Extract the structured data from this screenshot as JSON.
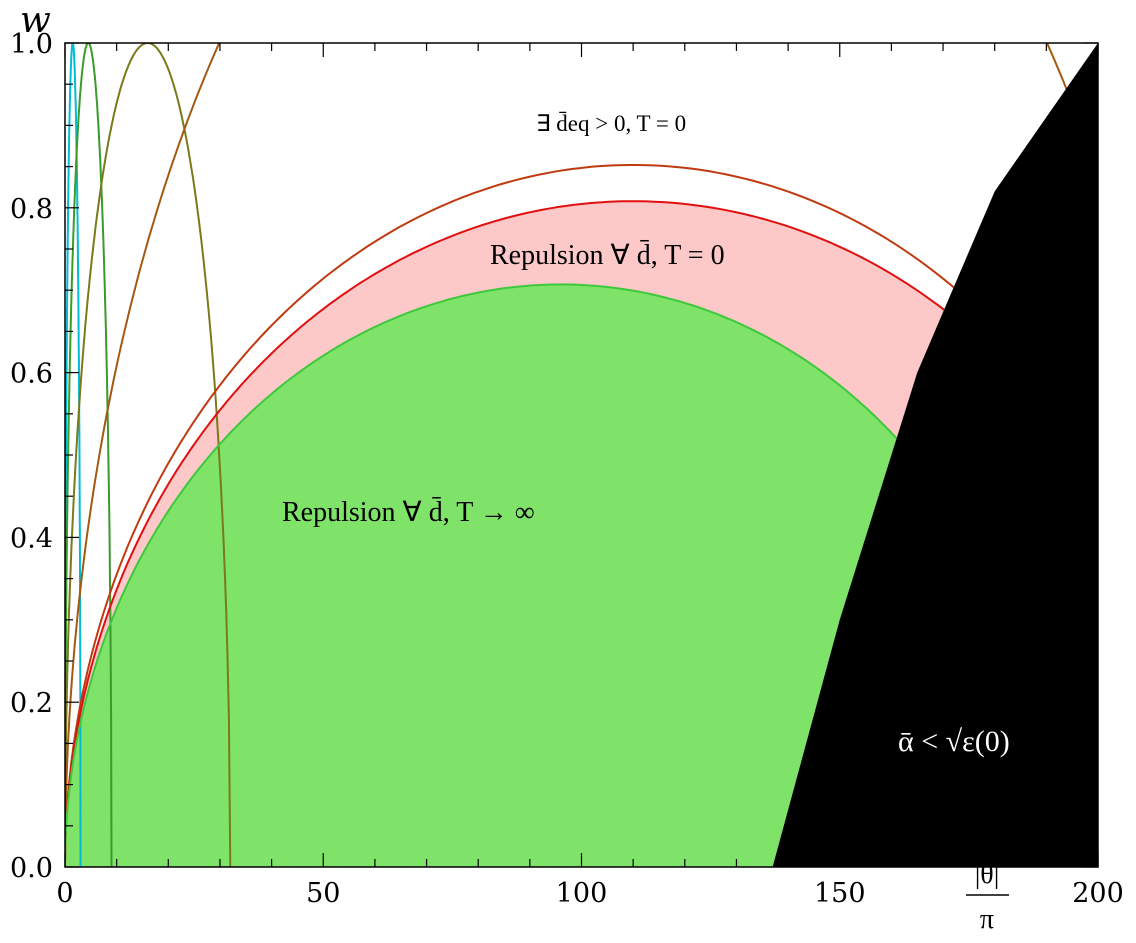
{
  "chart_data": {
    "type": "line",
    "title": "",
    "xlabel": "|θ| / π",
    "xlabel_numerator": "|θ|",
    "xlabel_denominator": "π",
    "ylabel": "w",
    "xlim": [
      0,
      200
    ],
    "ylim": [
      0.0,
      1.0
    ],
    "x_ticks": [
      "0",
      "50",
      "100",
      "150",
      "200"
    ],
    "y_ticks": [
      "0.0",
      "0.2",
      "0.4",
      "0.6",
      "0.8",
      "1.0"
    ],
    "grid": false,
    "regions": [
      {
        "label": "Repulsion ∀ d̄,  T → ∞",
        "color": "#7ee368",
        "boundary_peak": {
          "x": 96,
          "w": 0.707
        },
        "x_range": [
          0,
          155
        ]
      },
      {
        "label": "Repulsion ∀ d̄,  T = 0",
        "color": "#fcc8c8",
        "boundary_peak": {
          "x": 110,
          "w": 0.808
        },
        "x_range": [
          0,
          165
        ]
      },
      {
        "label": "∃ d̄eq > 0,  T = 0",
        "color": "#ffffff"
      },
      {
        "label": "ᾱ < √ε(0)",
        "color": "#000000",
        "boundary": [
          [
            137,
            0.0
          ],
          [
            150,
            0.3
          ],
          [
            165,
            0.6
          ],
          [
            180,
            0.82
          ],
          [
            200,
            1.0
          ]
        ]
      }
    ],
    "series": [
      {
        "color": "#00bcd4",
        "peak_x": 1.5,
        "peak_w": 1.0,
        "x_end": 1.5
      },
      {
        "color": "#3a9a2a",
        "peak_x": 4.5,
        "peak_w": 1.0,
        "x_end": 4.5
      },
      {
        "color": "#7a7a1a",
        "peak_x": 16,
        "peak_w": 1.0,
        "x_end": 16
      },
      {
        "color": "#a35a10",
        "peak_x": 110,
        "peak_w": 1.46,
        "x_end": 180
      },
      {
        "color": "#c03a10",
        "peak_x": 110,
        "peak_w": 0.852,
        "x_end": 168
      },
      {
        "color": "#e01010",
        "peak_x": 110,
        "peak_w": 0.808,
        "x_end": 165
      },
      {
        "color": "#3ec83e",
        "peak_x": 96,
        "peak_w": 0.707,
        "x_end": 155
      }
    ]
  },
  "labels": {
    "region_green": "Repulsion ∀ d̄,  T → ∞",
    "region_pink": "Repulsion ∀ d̄,  T = 0",
    "region_white": "∃ d̄eq > 0,  T = 0",
    "region_black": "ᾱ < √ε(0)"
  }
}
